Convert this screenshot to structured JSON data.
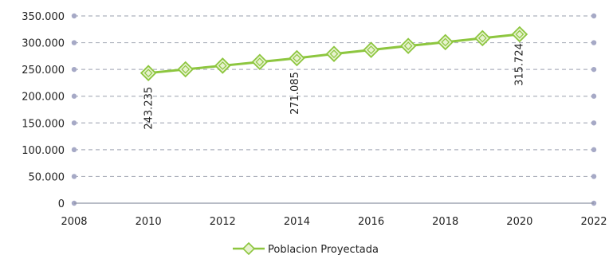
{
  "chart_data": {
    "type": "line",
    "title": "",
    "xlabel": "",
    "ylabel": "",
    "xlim": [
      2008,
      2022
    ],
    "ylim": [
      0,
      350000
    ],
    "x_ticks": [
      2008,
      2010,
      2012,
      2014,
      2016,
      2018,
      2020,
      2022
    ],
    "y_ticks": [
      {
        "value": 0,
        "label": "0"
      },
      {
        "value": 50000,
        "label": "50.000"
      },
      {
        "value": 100000,
        "label": "100.000"
      },
      {
        "value": 150000,
        "label": "150.000"
      },
      {
        "value": 200000,
        "label": "200.000"
      },
      {
        "value": 250000,
        "label": "250.000"
      },
      {
        "value": 300000,
        "label": "300.000"
      },
      {
        "value": 350000,
        "label": "350.000"
      }
    ],
    "grid": "horizontal dashed",
    "legend_position": "bottom-center",
    "series": [
      {
        "name": "Poblacion Proyectada",
        "color": "#8DC63F",
        "marker": "diamond",
        "x": [
          2010,
          2011,
          2012,
          2013,
          2014,
          2015,
          2016,
          2017,
          2018,
          2019,
          2020
        ],
        "values": [
          243235,
          250200,
          257000,
          264000,
          271085,
          279000,
          286500,
          294000,
          301000,
          308500,
          315724
        ]
      }
    ],
    "data_labels": [
      {
        "x": 2010,
        "value": 243235,
        "label": "243.235"
      },
      {
        "x": 2014,
        "value": 271085,
        "label": "271.085"
      },
      {
        "x": 2020,
        "value": 315724,
        "label": "315.724"
      }
    ]
  }
}
